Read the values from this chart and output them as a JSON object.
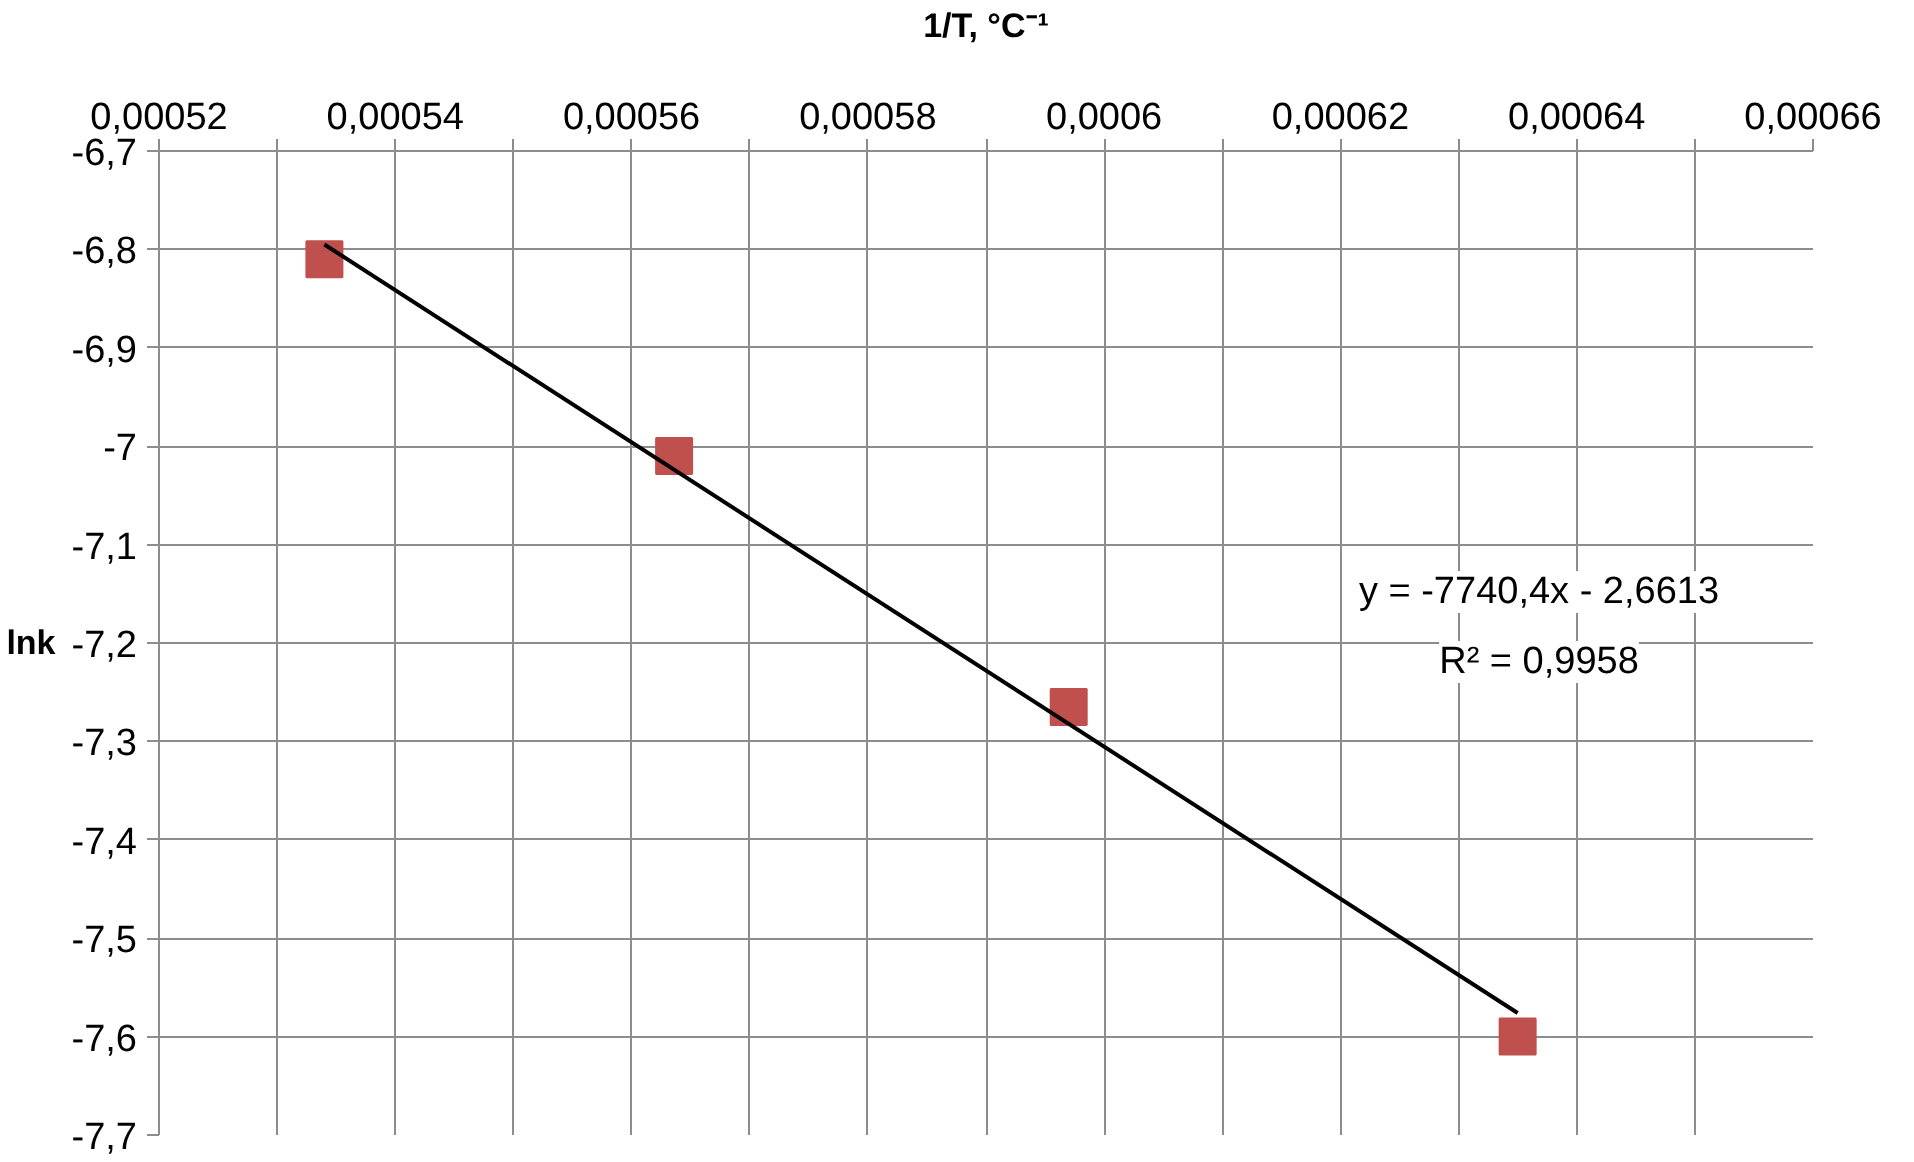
{
  "chart_data": {
    "type": "scatter",
    "xlabel": "1/T, °C⁻¹",
    "ylabel": "lnk",
    "series": [
      {
        "color": "#c0504d",
        "marker": "square",
        "x": [
          0.000534,
          0.0005636,
          0.000597,
          0.000635
        ],
        "values": [
          -6.81,
          -7.01,
          -7.265,
          -7.6
        ]
      },
      {
        "type": "line",
        "color": "#000000",
        "marker": "none",
        "line_style": "solid",
        "x": [
          0.000534,
          0.000635
        ],
        "values": [
          -6.795,
          -7.576
        ]
      }
    ],
    "xlim": [
      0.00052,
      0.00066
    ],
    "ylim": [
      -7.7,
      -6.7
    ],
    "xticks": [
      {
        "value": 0.00052,
        "label": "0,00052"
      },
      {
        "value": 0.00053,
        "label": null
      },
      {
        "value": 0.00054,
        "label": "0,00054"
      },
      {
        "value": 0.00055,
        "label": null
      },
      {
        "value": 0.00056,
        "label": "0,00056"
      },
      {
        "value": 0.00057,
        "label": null
      },
      {
        "value": 0.00058,
        "label": "0,00058"
      },
      {
        "value": 0.00059,
        "label": null
      },
      {
        "value": 0.0006,
        "label": "0,0006"
      },
      {
        "value": 0.00061,
        "label": null
      },
      {
        "value": 0.00062,
        "label": "0,00062"
      },
      {
        "value": 0.00063,
        "label": null
      },
      {
        "value": 0.00064,
        "label": "0,00064"
      },
      {
        "value": 0.00065,
        "label": null
      },
      {
        "value": 0.00066,
        "label": "0,00066"
      }
    ],
    "yticks": [
      {
        "value": -7.7,
        "label": "-7,7"
      },
      {
        "value": -7.6,
        "label": "-7,6"
      },
      {
        "value": -7.5,
        "label": "-7,5"
      },
      {
        "value": -7.4,
        "label": "-7,4"
      },
      {
        "value": -7.3,
        "label": "-7,3"
      },
      {
        "value": -7.2,
        "label": "-7,2"
      },
      {
        "value": -7.1,
        "label": "-7,1"
      },
      {
        "value": -7.0,
        "label": "-7"
      },
      {
        "value": -6.9,
        "label": "-6,9"
      },
      {
        "value": -6.8,
        "label": "-6,8"
      },
      {
        "value": -6.7,
        "label": "-6,7"
      }
    ],
    "grid": true,
    "annotations": [
      "y = -7740,4x - 2,6613",
      "R² = 0,9958"
    ]
  }
}
